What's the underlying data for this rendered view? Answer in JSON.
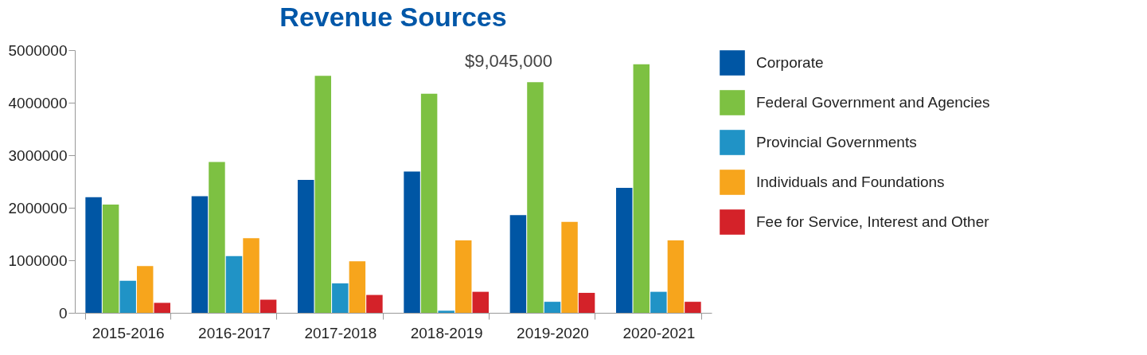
{
  "chart_data": {
    "type": "bar",
    "title": "Revenue Sources",
    "categories": [
      "2015-2016",
      "2016-2017",
      "2017-2018",
      "2018-2019",
      "2019-2020",
      "2020-2021"
    ],
    "series": [
      {
        "name": "Corporate",
        "color": "#0056a4",
        "values": [
          2200000,
          2220000,
          2530000,
          2690000,
          1860000,
          2380000
        ]
      },
      {
        "name": "Federal Government and Agencies",
        "color": "#7dc142",
        "values": [
          2060000,
          2870000,
          4510000,
          4170000,
          4390000,
          4730000
        ]
      },
      {
        "name": "Provincial Governments",
        "color": "#2093c6",
        "values": [
          610000,
          1080000,
          560000,
          40000,
          210000,
          400000
        ]
      },
      {
        "name": "Individuals and Foundations",
        "color": "#f7a51c",
        "values": [
          890000,
          1420000,
          980000,
          1380000,
          1730000,
          1380000
        ]
      },
      {
        "name": "Fee for Service, Interest and Other",
        "color": "#d42229",
        "values": [
          190000,
          250000,
          340000,
          400000,
          380000,
          210000
        ]
      }
    ],
    "ylim": [
      0,
      5000000
    ],
    "yticks": [
      0,
      1000000,
      2000000,
      3000000,
      4000000,
      5000000
    ],
    "grid": false,
    "legend": "right",
    "annotations": [
      "$9,045,000"
    ]
  }
}
